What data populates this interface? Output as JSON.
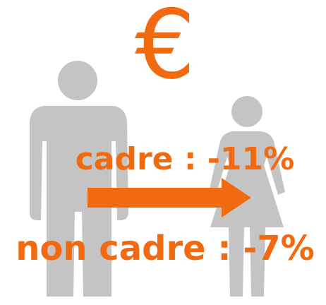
{
  "symbol": "€",
  "lines": [
    "cadre : -11%",
    "non cadre : -7%"
  ]
}
